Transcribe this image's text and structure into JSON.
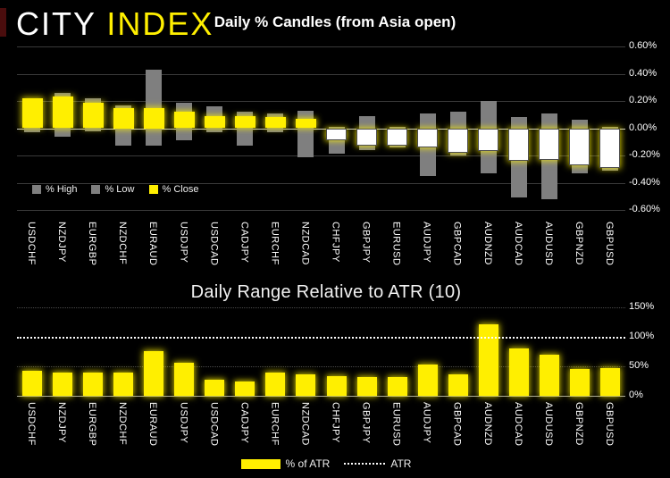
{
  "brand": {
    "city": "CITY",
    "index": "INDEX"
  },
  "colors": {
    "background": "#000000",
    "accent_yellow": "#ffef00",
    "range_gray": "#7f7f7f",
    "negative_body": "#ffffff",
    "zero_line": "#cfcfcf",
    "gridline": "#3a3a3a",
    "red_accent": "#4a0d0d"
  },
  "chart_data": [
    {
      "type": "bar",
      "subtype": "high-low-close-candles",
      "title": "Daily % Candles (from Asia open)",
      "categories": [
        "USDCHF",
        "NZDJPY",
        "EURGBP",
        "NZDCHF",
        "EURAUD",
        "USDJPY",
        "USDCAD",
        "CADJPY",
        "EURCHF",
        "NZDCAD",
        "CHFJPY",
        "GBPJPY",
        "EURUSD",
        "AUDJPY",
        "GBPCAD",
        "AUDNZD",
        "AUDCAD",
        "AUDUSD",
        "GBPNZD",
        "GBPUSD"
      ],
      "series": [
        {
          "name": "% High",
          "values": [
            0.22,
            0.26,
            0.22,
            0.17,
            0.43,
            0.19,
            0.16,
            0.12,
            0.11,
            0.13,
            0.01,
            0.09,
            0.01,
            0.11,
            0.12,
            0.2,
            0.08,
            0.11,
            0.06,
            0.01
          ]
        },
        {
          "name": "% Low",
          "values": [
            -0.03,
            -0.06,
            -0.02,
            -0.13,
            -0.13,
            -0.09,
            -0.03,
            -0.13,
            -0.03,
            -0.21,
            -0.19,
            -0.16,
            -0.14,
            -0.35,
            -0.2,
            -0.33,
            -0.51,
            -0.52,
            -0.33,
            -0.31
          ]
        },
        {
          "name": "% Close",
          "values": [
            0.22,
            0.23,
            0.19,
            0.15,
            0.15,
            0.12,
            0.09,
            0.09,
            0.08,
            0.07,
            -0.09,
            -0.13,
            -0.13,
            -0.14,
            -0.18,
            -0.17,
            -0.24,
            -0.23,
            -0.27,
            -0.29
          ]
        }
      ],
      "ylim": [
        -0.6,
        0.6
      ],
      "y_ticks": [
        {
          "label": "0.60%",
          "value": 0.6
        },
        {
          "label": "0.40%",
          "value": 0.4
        },
        {
          "label": "0.20%",
          "value": 0.2
        },
        {
          "label": "0.00%",
          "value": 0
        },
        {
          "label": "-0.20%",
          "value": -0.2
        },
        {
          "label": "-0.40%",
          "value": -0.4
        },
        {
          "label": "-0.60%",
          "value": -0.6
        }
      ],
      "legend_position": "top-left-under-plot",
      "grid": "horizontal-solid"
    },
    {
      "type": "bar",
      "title": "Daily Range Relative to ATR (10)",
      "categories": [
        "USDCHF",
        "NZDJPY",
        "EURGBP",
        "NZDCHF",
        "EURAUD",
        "USDJPY",
        "USDCAD",
        "CADJPY",
        "EURCHF",
        "NZDCAD",
        "CHFJPY",
        "GBPJPY",
        "EURUSD",
        "AUDJPY",
        "GBPCAD",
        "AUDNZD",
        "AUDCAD",
        "AUDUSD",
        "GBPNZD",
        "GBPUSD"
      ],
      "values": [
        43,
        40,
        40,
        39,
        76,
        56,
        27,
        25,
        39,
        37,
        34,
        32,
        32,
        53,
        36,
        121,
        81,
        69,
        45,
        47
      ],
      "atr_reference_level": 100,
      "ylim": [
        0,
        150
      ],
      "y_ticks": [
        {
          "label": "150%",
          "value": 150
        },
        {
          "label": "100%",
          "value": 100
        },
        {
          "label": "50%",
          "value": 50
        },
        {
          "label": "0%",
          "value": 0
        }
      ],
      "legend": [
        "% of ATR",
        "ATR"
      ],
      "legend_position": "bottom-center",
      "grid": "horizontal-dotted"
    }
  ]
}
